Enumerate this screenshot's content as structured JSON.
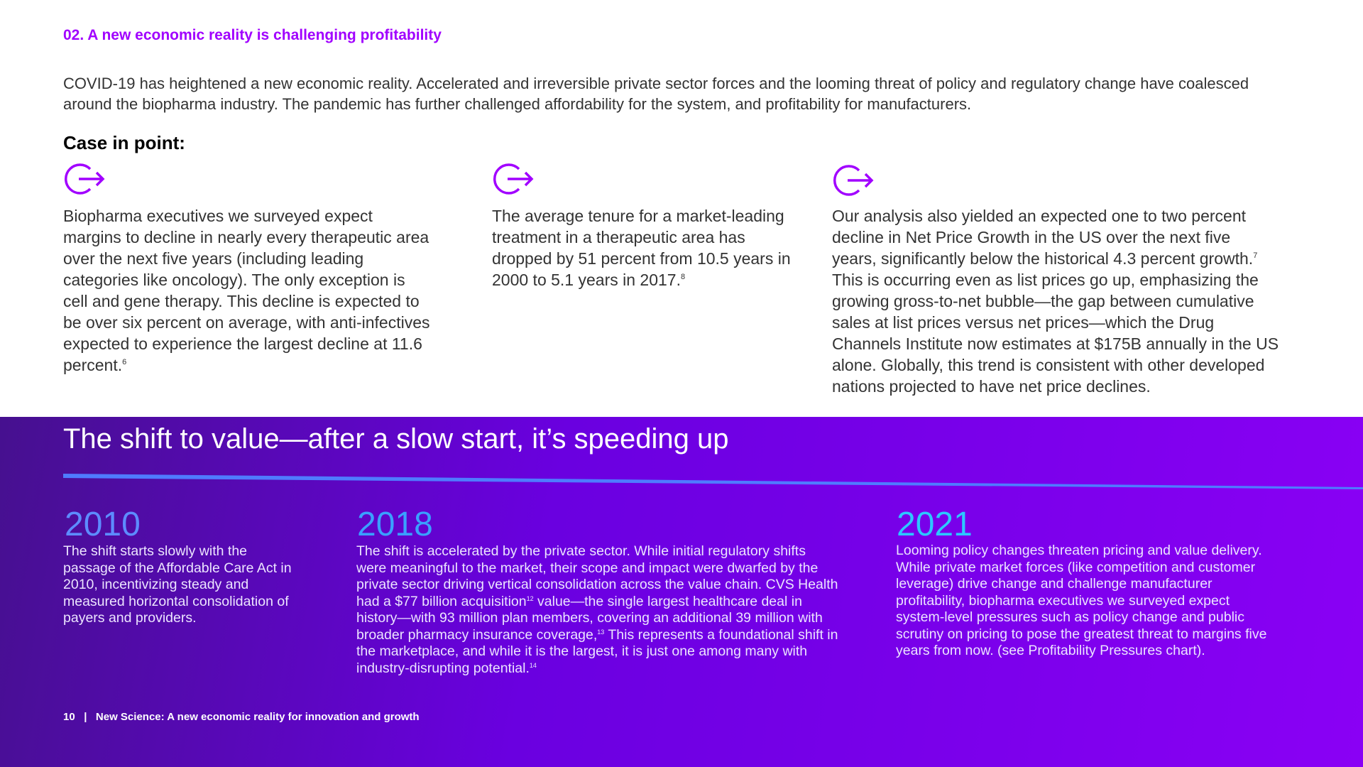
{
  "section": {
    "heading": "02. A new economic reality is challenging profitability",
    "intro": "COVID-19 has heightened a new economic reality. Accelerated and irreversible private sector forces and the looming threat of policy and regulatory change have coalesced around the biopharma industry. The pandemic has further challenged affordability for the system, and profitability for manufacturers.",
    "case_label": "Case in point:",
    "points": [
      {
        "parts": [
          {
            "text": "Biopharma executives we surveyed expect margins to decline in nearly every therapeutic area over the next five years (including leading categories like oncology). The only exception is cell and gene therapy. This decline is expected to be over six percent on average, with anti-infectives expected to experience the largest decline at 11.6 percent."
          },
          {
            "sup": "6"
          }
        ]
      },
      {
        "parts": [
          {
            "text": "The average tenure for a market-leading treatment in a therapeutic area has dropped by 51 percent from 10.5 years in 2000 to 5.1 years in 2017."
          },
          {
            "sup": "8"
          }
        ]
      },
      {
        "parts": [
          {
            "text": "Our analysis also yielded an expected one to two percent decline in Net Price Growth in the US over the next five years, significantly below the historical 4.3 percent growth."
          },
          {
            "sup": "7"
          },
          {
            "text": " This is occurring even as list prices go up, emphasizing the growing gross-to-net bubble—the gap between cumulative sales at list prices versus net prices—which the Drug Channels Institute now estimates at $175B annually in the US alone. Globally, this trend is consistent with other developed nations projected to have net price declines."
          }
        ]
      }
    ]
  },
  "timeline": {
    "title": "The shift to value—after a slow start, it’s speeding up",
    "entries": [
      {
        "year": "2010",
        "parts": [
          {
            "text": "The shift starts slowly with the passage of the Affordable Care Act in 2010, incentivizing steady and measured horizontal consolidation of payers and providers."
          }
        ]
      },
      {
        "year": "2018",
        "parts": [
          {
            "text": "The shift is accelerated by the private sector. While initial regulatory shifts were meaningful to the market, their scope and impact were dwarfed by the private sector driving vertical consolidation across the value chain. CVS Health had a $77 billion acquisition"
          },
          {
            "sup": "12"
          },
          {
            "text": " value—the single largest healthcare deal in history—with 93 million plan members, covering an additional 39 million with broader pharmacy insurance coverage,"
          },
          {
            "sup": "13"
          },
          {
            "text": " This represents a foundational shift in the marketplace, and while it is the largest, it is just one among many with industry-disrupting potential."
          },
          {
            "sup": "14"
          }
        ]
      },
      {
        "year": "2021",
        "parts": [
          {
            "text": "Looming policy changes threaten pricing and value delivery. While private market forces (like competition and customer leverage) drive change and challenge manufacturer profitability, biopharma executives we surveyed expect system-level pressures such as policy change and public scrutiny on pricing to pose the greatest threat to margins five years from now. (see Profitability Pressures chart)."
          }
        ]
      }
    ]
  },
  "footer": {
    "page": "10",
    "separator": "|",
    "title": "New Science: A new economic reality for innovation and growth"
  }
}
